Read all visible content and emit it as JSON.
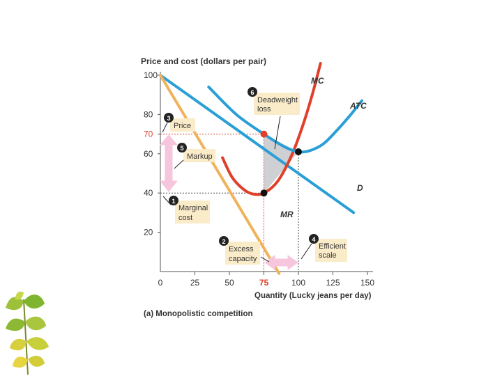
{
  "chart_data": {
    "type": "line",
    "title": "(a) Monopolistic competition",
    "ylabel": "Price and cost (dollars per pair)",
    "xlabel": "Quantity (Lucky jeans per day)",
    "xlim": [
      0,
      150
    ],
    "ylim": [
      0,
      100
    ],
    "x_ticks": [
      0,
      25,
      50,
      75,
      100,
      125,
      150
    ],
    "y_ticks": [
      20,
      40,
      60,
      80,
      100
    ],
    "highlighted_x_tick": 75,
    "highlighted_y_tick": 70,
    "highlighted_y_label": "70",
    "highlighted_x_label": "75",
    "series": [
      {
        "name": "D",
        "color": "#2a9fd6",
        "x": [
          0,
          140
        ],
        "y": [
          100,
          30
        ]
      },
      {
        "name": "MR",
        "color": "#f0b25a",
        "x": [
          0,
          86
        ],
        "y": [
          100,
          -1
        ]
      },
      {
        "name": "MC",
        "color": "#e0402a",
        "x": [
          45,
          52,
          60,
          67,
          75,
          85,
          95,
          103,
          110,
          116
        ],
        "y": [
          58,
          48,
          42,
          39.5,
          40,
          46,
          59,
          74,
          90,
          106
        ]
      },
      {
        "name": "ATC",
        "color": "#2a9fd6",
        "x": [
          35,
          55,
          75,
          90,
          100,
          108,
          118,
          128,
          138,
          146
        ],
        "y": [
          94,
          80,
          70,
          63.5,
          61,
          61.5,
          65,
          72,
          80,
          87
        ]
      }
    ],
    "points": [
      {
        "x": 75,
        "y": 70,
        "color": "#e0402a"
      },
      {
        "x": 75,
        "y": 40,
        "color": "#111111"
      },
      {
        "x": 100,
        "y": 61,
        "color": "#111111"
      }
    ],
    "deadweight_loss_region": {
      "x": [
        75,
        75,
        100
      ],
      "y": [
        70,
        40,
        61
      ]
    },
    "callouts": [
      {
        "num": "1",
        "lines": [
          "Marginal",
          "cost"
        ]
      },
      {
        "num": "2",
        "lines": [
          "Excess",
          "capacity"
        ]
      },
      {
        "num": "3",
        "lines": [
          "Price"
        ]
      },
      {
        "num": "4",
        "lines": [
          "Efficient",
          "scale"
        ]
      },
      {
        "num": "5",
        "lines": [
          "Markup"
        ]
      },
      {
        "num": "6",
        "lines": [
          "Deadweight",
          "loss"
        ]
      }
    ]
  },
  "colors": {
    "demand": "#2a9fd6",
    "mr": "#f0b25a",
    "mc": "#e0402a",
    "highlight_text": "#e0402a",
    "box_fill": "#fbecc9",
    "arrow_fill": "#f6c6dd",
    "dwl_fill": "#cfd0d3"
  }
}
